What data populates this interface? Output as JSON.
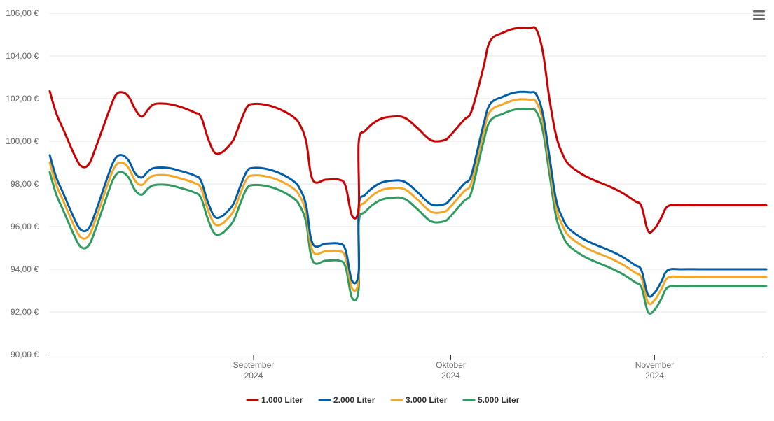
{
  "chart_data": {
    "type": "line",
    "x_axis": {
      "type": "date",
      "min": "2024-08-01",
      "max": "2024-11-18",
      "ticks": [
        {
          "date": "2024-09-01",
          "line1": "September",
          "line2": "2024"
        },
        {
          "date": "2024-10-01",
          "line1": "Oktober",
          "line2": "2024"
        },
        {
          "date": "2024-11-01",
          "line1": "November",
          "line2": "2024"
        }
      ]
    },
    "y_axis": {
      "min": 90,
      "max": 106,
      "ticks": [
        {
          "value": 90,
          "label": "90,00 €"
        },
        {
          "value": 92,
          "label": "92,00 €"
        },
        {
          "value": 94,
          "label": "94,00 €"
        },
        {
          "value": 96,
          "label": "96,00 €"
        },
        {
          "value": 98,
          "label": "98,00 €"
        },
        {
          "value": 100,
          "label": "100,00 €"
        },
        {
          "value": 102,
          "label": "102,00 €"
        },
        {
          "value": 104,
          "label": "104,00 €"
        },
        {
          "value": 106,
          "label": "106,00 €"
        }
      ],
      "grid": true
    },
    "legend": {
      "position": "bottom-center"
    },
    "series": [
      {
        "name": "1.000 Liter",
        "color": "#cc0000",
        "points": [
          [
            "2024-08-01",
            102.3
          ],
          [
            "2024-08-02",
            101.3
          ],
          [
            "2024-08-03",
            100.6
          ],
          [
            "2024-08-05",
            99.2
          ],
          [
            "2024-08-06",
            98.8
          ],
          [
            "2024-08-07",
            98.9
          ],
          [
            "2024-08-08",
            99.6
          ],
          [
            "2024-08-10",
            101.3
          ],
          [
            "2024-08-11",
            102.1
          ],
          [
            "2024-08-12",
            102.3
          ],
          [
            "2024-08-13",
            102.1
          ],
          [
            "2024-08-14",
            101.5
          ],
          [
            "2024-08-15",
            101.2
          ],
          [
            "2024-08-16",
            101.5
          ],
          [
            "2024-08-17",
            101.75
          ],
          [
            "2024-08-19",
            101.75
          ],
          [
            "2024-08-21",
            101.6
          ],
          [
            "2024-08-23",
            101.3
          ],
          [
            "2024-08-19",
            101.75
          ],
          [
            "2024-08-19",
            101.75
          ],
          [
            "2024-08-19",
            101.75
          ],
          [
            "2024-08-19",
            101.75
          ],
          [
            "2024-08-19",
            101.75
          ],
          [
            "2024-08-19",
            101.75
          ],
          [
            "2024-08-19",
            101.75
          ],
          [
            "2024-08-19",
            101.75
          ]
        ]
      }
    ]
  },
  "series_data": {
    "s1000": {
      "name": "1.000 Liter",
      "color": "#cc0000",
      "points": [
        [
          "2024-08-01",
          102.35
        ],
        [
          "2024-08-02",
          101.3
        ],
        [
          "2024-08-03",
          100.6
        ],
        [
          "2024-08-05",
          99.2
        ],
        [
          "2024-08-06",
          98.8
        ],
        [
          "2024-08-07",
          98.95
        ],
        [
          "2024-08-08",
          99.7
        ],
        [
          "2024-08-10",
          101.4
        ],
        [
          "2024-08-11",
          102.15
        ],
        [
          "2024-08-12",
          102.3
        ],
        [
          "2024-08-13",
          102.1
        ],
        [
          "2024-08-14",
          101.5
        ],
        [
          "2024-08-15",
          101.15
        ],
        [
          "2024-08-16",
          101.5
        ],
        [
          "2024-08-17",
          101.75
        ],
        [
          "2024-08-19",
          101.75
        ],
        [
          "2024-08-21",
          101.6
        ],
        [
          "2024-08-23",
          101.35
        ],
        [
          "2024-08-24",
          101.15
        ],
        [
          "2024-08-25",
          100.2
        ],
        [
          "2024-08-26",
          99.5
        ],
        [
          "2024-08-27",
          99.45
        ],
        [
          "2024-08-28",
          99.7
        ],
        [
          "2024-08-29",
          100.1
        ],
        [
          "2024-08-30",
          100.9
        ],
        [
          "2024-08-31",
          101.6
        ],
        [
          "2024-09-01",
          101.75
        ],
        [
          "2024-09-03",
          101.7
        ],
        [
          "2024-09-05",
          101.5
        ],
        [
          "2024-09-07",
          101.15
        ],
        [
          "2024-09-08",
          100.8
        ],
        [
          "2024-09-09",
          100.0
        ],
        [
          "2024-09-10",
          98.2
        ],
        [
          "2024-09-12",
          98.2
        ],
        [
          "2024-09-14",
          98.2
        ],
        [
          "2024-09-15",
          97.9
        ],
        [
          "2024-09-16",
          96.5
        ],
        [
          "2024-09-17",
          96.9
        ],
        [
          "2024-09-17",
          99.95
        ],
        [
          "2024-09-18",
          100.5
        ],
        [
          "2024-09-20",
          101.0
        ],
        [
          "2024-09-22",
          101.15
        ],
        [
          "2024-09-24",
          101.1
        ],
        [
          "2024-09-26",
          100.6
        ],
        [
          "2024-09-28",
          100.05
        ],
        [
          "2024-09-30",
          100.05
        ],
        [
          "2024-10-01",
          100.3
        ],
        [
          "2024-10-03",
          101.0
        ],
        [
          "2024-10-04",
          101.3
        ],
        [
          "2024-10-05",
          102.3
        ],
        [
          "2024-10-06",
          103.5
        ],
        [
          "2024-10-07",
          104.7
        ],
        [
          "2024-10-09",
          105.1
        ],
        [
          "2024-10-11",
          105.3
        ],
        [
          "2024-10-13",
          105.3
        ],
        [
          "2024-10-14",
          105.25
        ],
        [
          "2024-10-15",
          104.2
        ],
        [
          "2024-10-16",
          102.0
        ],
        [
          "2024-10-17",
          100.3
        ],
        [
          "2024-10-18",
          99.4
        ],
        [
          "2024-10-19",
          98.9
        ],
        [
          "2024-10-21",
          98.45
        ],
        [
          "2024-10-23",
          98.15
        ],
        [
          "2024-10-25",
          97.9
        ],
        [
          "2024-10-27",
          97.6
        ],
        [
          "2024-10-29",
          97.2
        ],
        [
          "2024-10-30",
          96.95
        ],
        [
          "2024-10-31",
          95.8
        ],
        [
          "2024-11-01",
          95.9
        ],
        [
          "2024-11-02",
          96.4
        ],
        [
          "2024-11-03",
          96.95
        ],
        [
          "2024-11-05",
          97.0
        ],
        [
          "2024-11-08",
          97.0
        ],
        [
          "2024-11-12",
          97.0
        ],
        [
          "2024-11-18",
          97.0
        ]
      ]
    }
  }
}
